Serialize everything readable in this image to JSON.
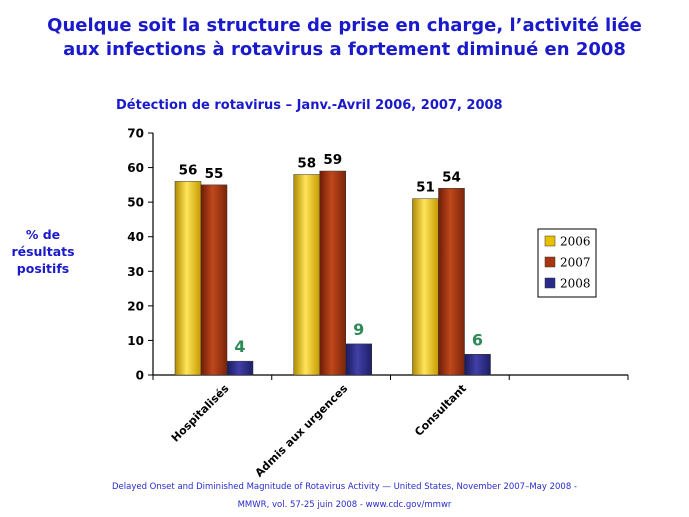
{
  "title": {
    "line1": "Quelque soit la structure de prise en charge, l’activité liée",
    "line2": "aux infections à rotavirus a fortement diminué en 2008"
  },
  "source": {
    "line1": "Delayed Onset and Diminished Magnitude of Rotavirus Activity — United States, November 2007–May 2008 -",
    "line2": "MMWR, vol. 57-25 juin 2008 - www.cdc.gov/mmwr"
  },
  "colors": {
    "title": "#1a1acc",
    "series_2006": "#e8c000",
    "series_2007": "#a83410",
    "series_2008": "#2a2a8a",
    "label_2008": "#2e8b57"
  },
  "chart_data": {
    "type": "bar",
    "title": "Détection de rotavirus – Janv.-Avril 2006, 2007, 2008",
    "xlabel": "",
    "ylabel": "% de résultats positifs",
    "ylim": [
      0,
      70
    ],
    "yticks": [
      0,
      10,
      20,
      30,
      40,
      50,
      60,
      70
    ],
    "grid": false,
    "legend_position": "right",
    "categories": [
      "Hospitalisés",
      "Admis aux urgences",
      "Consultant"
    ],
    "series": [
      {
        "name": "2006",
        "values": [
          56,
          58,
          51
        ],
        "color": "#e8c000"
      },
      {
        "name": "2007",
        "values": [
          55,
          59,
          54
        ],
        "color": "#a83410"
      },
      {
        "name": "2008",
        "values": [
          4,
          9,
          6
        ],
        "color": "#2a2a8a",
        "label_color": "#2e8b57"
      }
    ]
  }
}
